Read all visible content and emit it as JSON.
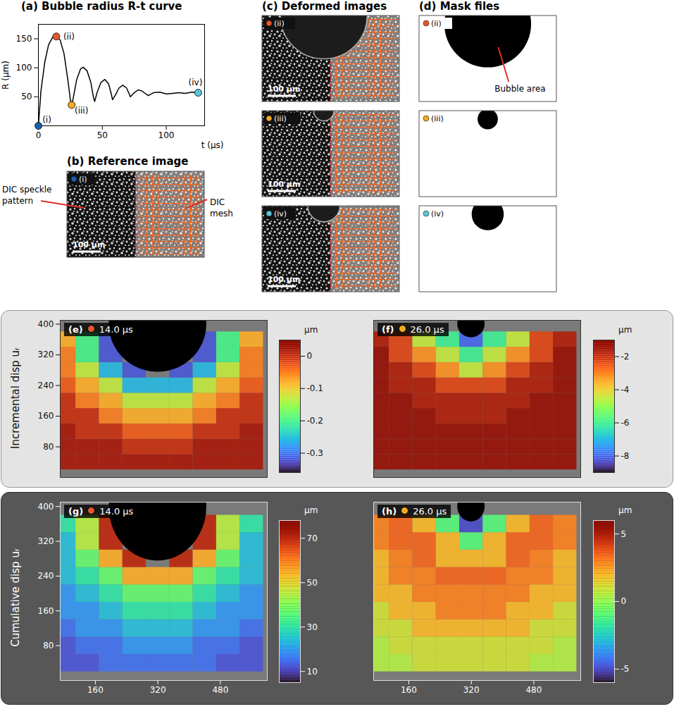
{
  "chart_data": [
    {
      "type": "line",
      "title": "(a) Bubble radius R-t curve",
      "x_label": "t (µs)",
      "y_label": "R (µm)",
      "x": [
        0,
        2,
        5,
        8,
        11,
        14,
        17,
        20,
        23,
        25,
        26,
        27,
        30,
        33,
        35,
        38,
        41,
        43,
        44,
        46,
        49,
        52,
        55,
        57,
        58,
        60,
        63,
        66,
        69,
        71,
        72,
        75,
        78,
        81,
        84,
        86,
        90,
        95,
        100,
        105,
        110,
        115,
        120,
        125
      ],
      "values": [
        0,
        60,
        110,
        140,
        152,
        154,
        148,
        125,
        80,
        45,
        36,
        45,
        80,
        98,
        101,
        95,
        75,
        50,
        42,
        58,
        75,
        80,
        72,
        55,
        45,
        52,
        65,
        70,
        65,
        55,
        50,
        57,
        62,
        60,
        55,
        52,
        57,
        58,
        55,
        56,
        57,
        56,
        58,
        57
      ],
      "color": "#000000",
      "xlim": [
        0,
        130
      ],
      "ylim": [
        0,
        175
      ],
      "xticks": [
        0,
        50,
        100
      ],
      "yticks": [
        50,
        100,
        150
      ],
      "points": [
        {
          "label": "(i)",
          "x": 0,
          "y": 0,
          "color": "#1a5ea8"
        },
        {
          "label": "(ii)",
          "x": 14,
          "y": 154,
          "color": "#e4572e"
        },
        {
          "label": "(iii)",
          "x": 26,
          "y": 36,
          "color": "#f2a922"
        },
        {
          "label": "(iv)",
          "x": 125,
          "y": 57,
          "color": "#5cc6d6"
        }
      ]
    },
    {
      "type": "heatmap",
      "title": "(e)",
      "time": "14.0 µs",
      "color": "#e4572e",
      "x": [
        80,
        140,
        200,
        260,
        320,
        380,
        440,
        500,
        560
      ],
      "y": [
        40,
        80,
        120,
        160,
        200,
        240,
        280,
        320,
        360
      ],
      "values": [
        [
          0.02,
          0.02,
          0.02,
          0.02,
          0.02,
          0.02,
          0.02,
          0.02,
          0.02
        ],
        [
          0.02,
          0.02,
          0.02,
          0,
          0,
          0,
          0.02,
          0.02,
          0.02
        ],
        [
          0.02,
          0,
          0,
          -0.03,
          -0.03,
          -0.03,
          0,
          0,
          0.02
        ],
        [
          0,
          0,
          -0.05,
          -0.08,
          -0.08,
          -0.08,
          -0.05,
          0,
          0
        ],
        [
          0,
          -0.05,
          -0.08,
          -0.13,
          -0.13,
          -0.13,
          -0.08,
          -0.05,
          0
        ],
        [
          -0.03,
          -0.08,
          -0.13,
          -0.26,
          -0.26,
          -0.26,
          -0.13,
          -0.08,
          -0.03
        ],
        [
          -0.05,
          -0.13,
          -0.26,
          -0.32,
          null,
          -0.32,
          -0.26,
          -0.13,
          -0.05
        ],
        [
          -0.05,
          -0.2,
          -0.32,
          null,
          null,
          null,
          -0.32,
          -0.2,
          -0.05
        ],
        [
          -0.08,
          -0.2,
          -0.32,
          null,
          null,
          null,
          -0.32,
          -0.2,
          -0.08
        ]
      ],
      "xlim": [
        70,
        600
      ],
      "ylim": [
        0,
        410
      ],
      "yticks": [
        80,
        160,
        240,
        320,
        400
      ],
      "tick_labels": "y",
      "bubble": {
        "x": 320,
        "y": 400,
        "radius": 125
      },
      "clim": [
        -0.36,
        0.05
      ],
      "cticks": [
        0,
        -0.1,
        -0.2,
        -0.3
      ],
      "unit": "µm"
    },
    {
      "type": "heatmap",
      "title": "(f)",
      "time": "26.0 µs",
      "color": "#f2a922",
      "x": [
        80,
        140,
        200,
        260,
        320,
        380,
        440,
        500,
        560
      ],
      "y": [
        40,
        80,
        120,
        160,
        200,
        240,
        280,
        320,
        360
      ],
      "values": [
        [
          -1.3,
          -1.3,
          -1.3,
          -1.3,
          -1.3,
          -1.3,
          -1.3,
          -1.3,
          -1.3
        ],
        [
          -1.3,
          -1.3,
          -1.3,
          -1.3,
          -1.3,
          -1.3,
          -1.3,
          -1.3,
          -1.3
        ],
        [
          -1.3,
          -1.3,
          -1.3,
          -1.3,
          -1.3,
          -1.3,
          -1.3,
          -1.3,
          -1.3
        ],
        [
          -1.3,
          -1.3,
          -1.3,
          -1.7,
          -1.7,
          -1.7,
          -1.3,
          -1.3,
          -1.3
        ],
        [
          -1.3,
          -1.3,
          -1.7,
          -1.7,
          -1.7,
          -1.7,
          -1.7,
          -1.3,
          -1.3
        ],
        [
          -1.3,
          -1.7,
          -1.7,
          -2.3,
          -2.3,
          -2.3,
          -1.7,
          -1.7,
          -1.3
        ],
        [
          -1.3,
          -1.7,
          -2.3,
          -3.2,
          -4.5,
          -3.2,
          -2.3,
          -1.7,
          -1.3
        ],
        [
          -1.3,
          -2.3,
          -3.2,
          -4.5,
          -6,
          -4.5,
          -3.2,
          -2.3,
          -1.3
        ],
        [
          -1.7,
          -2.3,
          -4.5,
          -6,
          -8,
          -6,
          -4.5,
          -2.3,
          -1.7
        ]
      ],
      "xlim": [
        70,
        600
      ],
      "ylim": [
        0,
        410
      ],
      "tick_labels": false,
      "bubble": {
        "x": 320,
        "y": 400,
        "radius": 35
      },
      "clim": [
        -9,
        -1
      ],
      "cticks": [
        -2,
        -4,
        -6,
        -8
      ],
      "unit": "µm"
    },
    {
      "type": "heatmap",
      "title": "(g)",
      "time": "14.0 µs",
      "color": "#e4572e",
      "x": [
        80,
        140,
        200,
        260,
        320,
        380,
        440,
        500,
        560
      ],
      "y": [
        40,
        80,
        120,
        160,
        200,
        240,
        280,
        320,
        360
      ],
      "values": [
        [
          12,
          12,
          15,
          15,
          15,
          15,
          15,
          12,
          12
        ],
        [
          12,
          15,
          15,
          19,
          19,
          19,
          15,
          15,
          12
        ],
        [
          15,
          19,
          19,
          24,
          24,
          24,
          19,
          19,
          15
        ],
        [
          19,
          19,
          24,
          30,
          30,
          30,
          24,
          19,
          19
        ],
        [
          19,
          24,
          30,
          37,
          37,
          37,
          30,
          24,
          19
        ],
        [
          24,
          30,
          37,
          55,
          55,
          55,
          37,
          30,
          24
        ],
        [
          24,
          37,
          55,
          70,
          null,
          70,
          55,
          37,
          24
        ],
        [
          24,
          45,
          70,
          null,
          null,
          null,
          70,
          45,
          24
        ],
        [
          30,
          45,
          70,
          null,
          null,
          null,
          70,
          45,
          30
        ]
      ],
      "xlim": [
        70,
        600
      ],
      "ylim": [
        0,
        410
      ],
      "xticks": [
        160,
        320,
        480
      ],
      "yticks": [
        80,
        160,
        240,
        320,
        400
      ],
      "bubble": {
        "x": 320,
        "y": 400,
        "radius": 125
      },
      "clim": [
        5,
        78
      ],
      "cticks": [
        10,
        30,
        50,
        70
      ],
      "unit": "µm"
    },
    {
      "type": "heatmap",
      "title": "(h)",
      "time": "26.0 µs",
      "color": "#f2a922",
      "x": [
        80,
        140,
        200,
        260,
        320,
        380,
        440,
        500,
        560
      ],
      "y": [
        40,
        80,
        120,
        160,
        200,
        240,
        280,
        320,
        360
      ],
      "values": [
        [
          0.5,
          0.5,
          1,
          1,
          1,
          1,
          1,
          0.5,
          0.5
        ],
        [
          0.5,
          1,
          1,
          1,
          1,
          1,
          1,
          1,
          0.5
        ],
        [
          1,
          1,
          2,
          2,
          2,
          2,
          2,
          1,
          1
        ],
        [
          1,
          2,
          2,
          3,
          3,
          3,
          2,
          2,
          1
        ],
        [
          2,
          2,
          3,
          3,
          3,
          3,
          3,
          2,
          2
        ],
        [
          2,
          3,
          3,
          3.5,
          3.5,
          3.5,
          3,
          3,
          2
        ],
        [
          2,
          3,
          3.5,
          2,
          2,
          2,
          3.5,
          3,
          2
        ],
        [
          3,
          3.5,
          3.5,
          2,
          -1,
          2,
          3.5,
          3.5,
          3
        ],
        [
          3,
          3.5,
          2,
          -1,
          -5,
          -1,
          2,
          3.5,
          3
        ]
      ],
      "xlim": [
        70,
        600
      ],
      "ylim": [
        0,
        410
      ],
      "xticks": [
        160,
        320,
        480
      ],
      "tick_labels": "x",
      "bubble": {
        "x": 320,
        "y": 400,
        "radius": 35
      },
      "clim": [
        -6,
        6
      ],
      "cticks": [
        -5,
        0,
        5
      ],
      "unit": "µm"
    }
  ],
  "row_labels": [
    "Incremental disp uᵣ",
    "Cumulative disp uᵣ"
  ],
  "image_panels": [
    {
      "title": "(b) Reference image",
      "frames": [
        {
          "tag": "(i)",
          "scale_bar": "100 µm",
          "mesh": true,
          "labels": [
            "DIC speckle pattern",
            "DIC mesh"
          ]
        }
      ]
    },
    {
      "title": "(c) Deformed images",
      "frames": [
        {
          "tag": "(ii)",
          "scale_bar": "100 µm",
          "mesh": true
        },
        {
          "tag": "(iii)",
          "scale_bar": "100 µm",
          "mesh": true
        },
        {
          "tag": "(iv)",
          "scale_bar": "100 µm",
          "mesh": true
        }
      ]
    },
    {
      "title": "(d) Mask files",
      "frames": [
        {
          "tag": "(ii)",
          "mask": true,
          "label": "Bubble area"
        },
        {
          "tag": "(iii)",
          "mask": true
        },
        {
          "tag": "(iv)",
          "mask": true
        }
      ]
    }
  ]
}
